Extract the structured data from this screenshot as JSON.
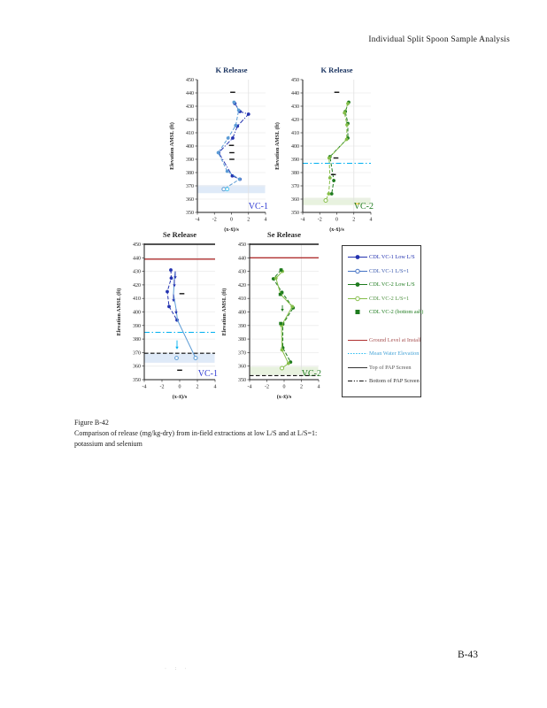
{
  "page": {
    "header": "Individual Split Spoon Sample Analysis",
    "page_number": "B-43",
    "footer_marks": "· : ·",
    "caption": {
      "line1": "Figure B-42",
      "line2": "Comparison of release (mg/kg-dry) from in-field extractions at low L/S and at L/S=1:",
      "line3": "potassium and selenium"
    }
  },
  "legend": {
    "items": [
      {
        "label": "CDL  VC-1 Low L/S",
        "color": "#2433B0",
        "text_color": "#2433B0",
        "line": "solid",
        "marker": "circle-filled"
      },
      {
        "label": "CDL  VC-1 L/S=1",
        "color": "#4472C4",
        "text_color": "#3C5BAF",
        "line": "solid",
        "marker": "circle-open"
      },
      {
        "label": "CDL  VC-2 Low L/S",
        "color": "#1E7B1E",
        "text_color": "#1E7B1E",
        "line": "solid",
        "marker": "circle-filled"
      },
      {
        "label": "CDL  VC-2 L/S=1",
        "color": "#86BE4A",
        "text_color": "#4F9140",
        "line": "solid",
        "marker": "circle-open"
      },
      {
        "label": "CDL  VC-2 (bottom ash)",
        "color": "#1E7B1E",
        "text_color": "#1E7B1E",
        "line": "none",
        "marker": "square",
        "gap_before": false
      },
      {
        "label": "Ground Level at Install",
        "color": "#B03030",
        "text_color": "#A85454",
        "line": "solid",
        "marker": "none",
        "gap_before": true
      },
      {
        "label": "Mean Water Elevation",
        "color": "#00B0F0",
        "text_color": "#4BA6D8",
        "line": "dot",
        "marker": "none"
      },
      {
        "label": "Top of PAP Screen",
        "color": "#333333",
        "text_color": "#555555",
        "line": "solid",
        "marker": "none"
      },
      {
        "label": "Bottom of PAP Screen",
        "color": "#111111",
        "text_color": "#333333",
        "line": "dashdotdot",
        "marker": "none"
      }
    ]
  },
  "chart_data": [
    {
      "type": "line",
      "title": "K Release",
      "title_color": "#1F3864",
      "corner_label": "VC-1",
      "corner_color": "#2F3BD3",
      "xlabel": "(x-x̄)/s",
      "ylabel": "Elevation AMSL (ft)",
      "xlim": [
        -4,
        4
      ],
      "ylim": [
        350,
        450
      ],
      "xticks": [
        -4,
        -2,
        0,
        2,
        4
      ],
      "yticks": [
        350,
        360,
        370,
        380,
        390,
        400,
        410,
        420,
        430,
        440,
        450
      ],
      "vgrid": [
        2
      ],
      "top_spine": false,
      "band": {
        "y1": 364.5,
        "y2": 370.5,
        "color": "#DFEAF8"
      },
      "hlines": [],
      "series": [
        {
          "name": "CDL VC-1 Low L/S",
          "color": "#2433B0",
          "dash": "dashdot",
          "marker": "circle",
          "points": [
            [
              0.4,
              432
            ],
            [
              1.0,
              426
            ],
            [
              2.0,
              424
            ],
            [
              0.7,
              415
            ],
            [
              0.15,
              406
            ],
            [
              -1.5,
              395
            ],
            [
              0.1,
              377.5
            ],
            [
              1.0,
              375
            ]
          ]
        },
        {
          "name": "CDL VC-1 L/S=1",
          "color": "#5B9BD5",
          "dash": "dash",
          "marker": "circle",
          "open_last": true,
          "points": [
            [
              0.3,
              433
            ],
            [
              0.85,
              427
            ],
            [
              0.5,
              415.5
            ],
            [
              -0.4,
              406
            ],
            [
              -1.55,
              395
            ],
            [
              -0.5,
              381
            ],
            [
              0.95,
              375
            ],
            [
              -0.9,
              367.5
            ]
          ]
        }
      ],
      "open_points": [
        {
          "x": -0.5,
          "y": 367.5,
          "color": "#55C7EE"
        }
      ],
      "dashes": [
        {
          "x": 0.15,
          "y": 440.5
        },
        {
          "x": 0,
          "y": 400.5
        },
        {
          "x": 0.05,
          "y": 395
        },
        {
          "x": 0.05,
          "y": 390
        }
      ],
      "squares": [],
      "arrows": []
    },
    {
      "type": "line",
      "title": "K Release",
      "title_color": "#1F3864",
      "corner_label": "VC-2",
      "corner_color": "#1E7B1E",
      "xlabel": "(x-x̄)/s",
      "ylabel": "Elevation AMSL (ft)",
      "xlim": [
        -4,
        4
      ],
      "ylim": [
        350,
        450
      ],
      "xticks": [
        -4,
        -2,
        0,
        2,
        4
      ],
      "yticks": [
        350,
        360,
        370,
        380,
        390,
        400,
        410,
        420,
        430,
        440,
        450
      ],
      "vgrid": [
        2
      ],
      "top_spine": false,
      "band": {
        "y1": 355.5,
        "y2": 361,
        "color": "#E8F2DF"
      },
      "hlines": [
        {
          "y": 387,
          "style": "cyan-dashdot"
        }
      ],
      "series": [
        {
          "name": "CDL VC-2 Low L/S",
          "color": "#1E7B1E",
          "dash": "dash",
          "marker": "circle",
          "points": [
            [
              1.4,
              433
            ],
            [
              1.0,
              426
            ],
            [
              1.3,
              417
            ],
            [
              1.3,
              406
            ],
            [
              -0.8,
              392
            ],
            [
              -0.35,
              374
            ],
            [
              -0.6,
              364
            ]
          ]
        },
        {
          "name": "CDL VC-2 L/S=1",
          "color": "#86BE4A",
          "dash": "dash",
          "marker": "circle",
          "open_last": true,
          "points": [
            [
              1.3,
              432
            ],
            [
              0.9,
              425
            ],
            [
              1.2,
              416
            ],
            [
              1.15,
              405
            ],
            [
              -0.9,
              391
            ],
            [
              -0.8,
              376
            ],
            [
              -0.95,
              364
            ],
            [
              -1.3,
              359
            ]
          ]
        }
      ],
      "open_points": [],
      "dashes": [
        {
          "x": 0,
          "y": 440.5
        },
        {
          "x": -0.1,
          "y": 391
        },
        {
          "x": -0.4,
          "y": 378.5
        },
        {
          "x": 2.4,
          "y": 356.5,
          "color": "#FFD24D"
        }
      ],
      "squares": [],
      "arrows": []
    },
    {
      "type": "line",
      "title": "Se Release",
      "title_color": "#262626",
      "corner_label": "VC-1",
      "corner_color": "#2F3BD3",
      "xlabel": "(x-x̄)/s",
      "ylabel": "Elevation AMSL (ft)",
      "xlim": [
        -4,
        4
      ],
      "ylim": [
        350,
        450
      ],
      "xticks": [
        -4,
        -2,
        0,
        2,
        4
      ],
      "yticks": [
        350,
        360,
        370,
        380,
        390,
        400,
        410,
        420,
        430,
        440,
        450
      ],
      "vgrid": [
        2
      ],
      "top_spine": true,
      "band": {
        "y1": 362.5,
        "y2": 369.5,
        "color": "#DFEAF8"
      },
      "hlines": [
        {
          "y": 439,
          "style": "red-solid"
        },
        {
          "y": 385,
          "style": "cyan-dashdot"
        },
        {
          "y": 369.5,
          "style": "black-dashed"
        }
      ],
      "series": [
        {
          "name": "CDL VC-1 Low L/S",
          "color": "#2433B0",
          "dash": "dash",
          "marker": "circle",
          "points": [
            [
              -1.0,
              431
            ],
            [
              -0.95,
              425
            ],
            [
              -1.4,
              415
            ],
            [
              -1.2,
              404
            ],
            [
              -0.3,
              394
            ]
          ]
        },
        {
          "name": "CDL VC-1 L/S=1",
          "color": "#5B9BD5",
          "dash": "solid",
          "marker": "none",
          "open_last": true,
          "points": [
            [
              -0.5,
              430
            ],
            [
              -0.6,
              424
            ],
            [
              -0.7,
              413
            ],
            [
              -0.4,
              402
            ],
            [
              -0.25,
              394
            ],
            [
              1.8,
              366
            ]
          ]
        }
      ],
      "open_points": [
        {
          "x": -0.35,
          "y": 366,
          "color": "#5B9BD5"
        }
      ],
      "dashes": [
        {
          "x": 0.25,
          "y": 413.5
        },
        {
          "x": 0,
          "y": 357
        }
      ],
      "squares": [],
      "arrows": [
        {
          "x": -0.5,
          "y1": 430,
          "y2": 425,
          "color": "#2433B0"
        },
        {
          "x": -0.6,
          "y1": 424,
          "y2": 419,
          "color": "#2433B0"
        },
        {
          "x": -0.7,
          "y1": 413,
          "y2": 408,
          "color": "#2433B0"
        },
        {
          "x": -0.4,
          "y1": 402,
          "y2": 399,
          "color": "#2433B0"
        },
        {
          "x": -0.3,
          "y1": 379,
          "y2": 373,
          "color": "#00B0F0"
        }
      ]
    },
    {
      "type": "line",
      "title": "Se Release",
      "title_color": "#262626",
      "corner_label": "VC-2",
      "corner_color": "#1E7B1E",
      "xlabel": "(x-x̄)/s",
      "ylabel": "Elevation AMSL (ft)",
      "xlim": [
        -4,
        4
      ],
      "ylim": [
        350,
        450
      ],
      "xticks": [
        -4,
        -2,
        0,
        2,
        4
      ],
      "yticks": [
        350,
        360,
        370,
        380,
        390,
        400,
        410,
        420,
        430,
        440,
        450
      ],
      "vgrid": [
        2
      ],
      "top_spine": true,
      "band": {
        "y1": 353.5,
        "y2": 359.5,
        "color": "#E8F2DF"
      },
      "hlines": [
        {
          "y": 440,
          "style": "red-solid"
        },
        {
          "y": 353,
          "style": "black-dashed"
        }
      ],
      "series": [
        {
          "name": "CDL VC-2 Low L/S",
          "color": "#1E7B1E",
          "dash": "dash",
          "marker": "circle",
          "points": [
            [
              -0.35,
              431
            ],
            [
              -1.25,
              424.5
            ],
            [
              -0.25,
              414.5
            ],
            [
              1.05,
              403
            ],
            [
              -0.15,
              391
            ],
            [
              -0.15,
              373.5
            ],
            [
              0.75,
              363
            ]
          ]
        },
        {
          "name": "CDL VC-2 L/S=1",
          "color": "#86BE4A",
          "dash": "solid",
          "marker": "circle",
          "open_last": true,
          "points": [
            [
              -0.2,
              430
            ],
            [
              -0.95,
              425
            ],
            [
              -0.4,
              413
            ],
            [
              0.95,
              404
            ],
            [
              -0.3,
              390
            ],
            [
              -0.25,
              372
            ],
            [
              0.5,
              362
            ],
            [
              -0.25,
              358.5
            ]
          ]
        }
      ],
      "open_points": [],
      "dashes": [],
      "squares": [
        {
          "x": -0.35,
          "y": 431
        },
        {
          "x": -0.45,
          "y": 413
        },
        {
          "x": -0.4,
          "y": 391.5
        }
      ],
      "arrows": [
        {
          "x": -0.2,
          "y1": 405,
          "y2": 401,
          "color": "#1E7B1E"
        }
      ]
    }
  ]
}
